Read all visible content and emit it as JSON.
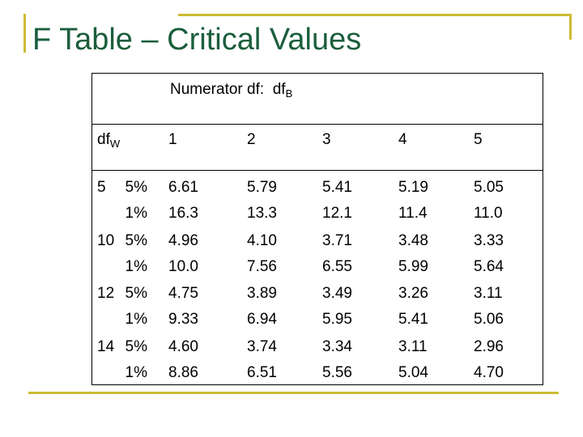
{
  "header": {
    "title": "F Table – Critical Values"
  },
  "table": {
    "top_label": {
      "text": "Numerator df:  df",
      "sub": "B"
    },
    "row_header": {
      "text": "df",
      "sub": "W"
    },
    "columns": [
      1,
      2,
      3,
      4,
      5
    ],
    "rows": [
      {
        "df": 5,
        "levels": [
          "5%",
          "1%"
        ],
        "values": [
          [
            "6.61",
            "16.3"
          ],
          [
            "5.79",
            "13.3"
          ],
          [
            "5.41",
            "12.1"
          ],
          [
            "5.19",
            "11.4"
          ],
          [
            "5.05",
            "11.0"
          ]
        ]
      },
      {
        "df": 10,
        "levels": [
          "5%",
          "1%"
        ],
        "values": [
          [
            "4.96",
            "10.0"
          ],
          [
            "4.10",
            "7.56"
          ],
          [
            "3.71",
            "6.55"
          ],
          [
            "3.48",
            "5.99"
          ],
          [
            "3.33",
            "5.64"
          ]
        ]
      },
      {
        "df": 12,
        "levels": [
          "5%",
          "1%"
        ],
        "values": [
          [
            "4.75",
            "9.33"
          ],
          [
            "3.89",
            "6.94"
          ],
          [
            "3.49",
            "5.95"
          ],
          [
            "3.26",
            "5.41"
          ],
          [
            "3.11",
            "5.06"
          ]
        ]
      },
      {
        "df": 14,
        "levels": [
          "5%",
          "1%"
        ],
        "values": [
          [
            "4.60",
            "8.86"
          ],
          [
            "3.74",
            "6.51"
          ],
          [
            "3.34",
            "5.56"
          ],
          [
            "3.11",
            "5.04"
          ],
          [
            "2.96",
            "4.70"
          ]
        ]
      }
    ]
  }
}
